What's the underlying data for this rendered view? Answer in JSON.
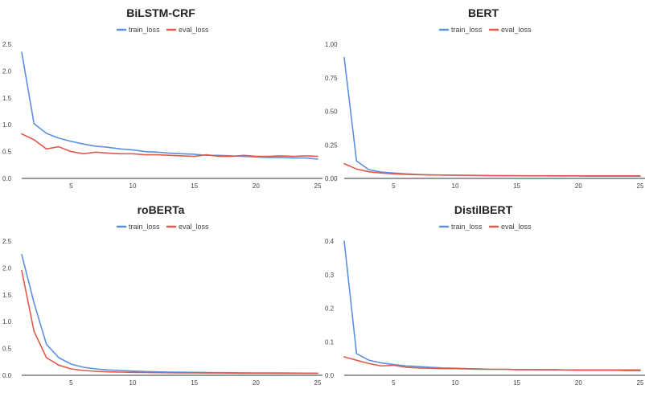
{
  "chart_data": [
    {
      "type": "line",
      "title": "BiLSTM-CRF",
      "xlabel": "",
      "ylabel": "",
      "xlim": [
        1,
        25
      ],
      "ylim": [
        0,
        2.5
      ],
      "xticks": [
        5,
        10,
        15,
        20,
        25
      ],
      "yticks": [
        0.0,
        0.5,
        1.0,
        1.5,
        2.0,
        2.5
      ],
      "ytick_labels": [
        "0.0",
        "0.5",
        "1.0",
        "1.5",
        "2.0",
        "2.5"
      ],
      "grid": false,
      "legend": "top-center",
      "x": [
        1,
        2,
        3,
        4,
        5,
        6,
        7,
        8,
        9,
        10,
        11,
        12,
        13,
        14,
        15,
        16,
        17,
        18,
        19,
        20,
        21,
        22,
        23,
        24,
        25
      ],
      "series": [
        {
          "name": "train_loss",
          "color": "#5b8fe0",
          "values": [
            2.35,
            1.02,
            0.84,
            0.75,
            0.69,
            0.64,
            0.6,
            0.58,
            0.55,
            0.53,
            0.5,
            0.49,
            0.47,
            0.46,
            0.45,
            0.43,
            0.43,
            0.42,
            0.41,
            0.4,
            0.39,
            0.39,
            0.38,
            0.38,
            0.36
          ]
        },
        {
          "name": "eval_loss",
          "color": "#e05b4b",
          "values": [
            0.83,
            0.72,
            0.55,
            0.59,
            0.5,
            0.46,
            0.49,
            0.47,
            0.46,
            0.46,
            0.44,
            0.44,
            0.43,
            0.42,
            0.41,
            0.44,
            0.41,
            0.41,
            0.43,
            0.41,
            0.41,
            0.42,
            0.41,
            0.42,
            0.41
          ]
        }
      ]
    },
    {
      "type": "line",
      "title": "BERT",
      "xlabel": "",
      "ylabel": "",
      "xlim": [
        1,
        25
      ],
      "ylim": [
        0,
        1.0
      ],
      "xticks": [
        5,
        10,
        15,
        20,
        25
      ],
      "yticks": [
        0.0,
        0.25,
        0.5,
        0.75,
        1.0
      ],
      "ytick_labels": [
        "0.00",
        "0.25",
        "0.50",
        "0.75",
        "1.00"
      ],
      "grid": false,
      "legend": "top-center",
      "x": [
        1,
        2,
        3,
        4,
        5,
        6,
        7,
        8,
        9,
        10,
        11,
        12,
        13,
        14,
        15,
        16,
        17,
        18,
        19,
        20,
        21,
        22,
        23,
        24,
        25
      ],
      "series": [
        {
          "name": "train_loss",
          "color": "#5b8fe0",
          "values": [
            0.9,
            0.13,
            0.065,
            0.048,
            0.04,
            0.034,
            0.03,
            0.027,
            0.025,
            0.024,
            0.023,
            0.022,
            0.021,
            0.02,
            0.02,
            0.019,
            0.019,
            0.018,
            0.018,
            0.018,
            0.017,
            0.017,
            0.017,
            0.017,
            0.017
          ]
        },
        {
          "name": "eval_loss",
          "color": "#e05b4b",
          "values": [
            0.11,
            0.07,
            0.05,
            0.04,
            0.034,
            0.03,
            0.028,
            0.026,
            0.025,
            0.024,
            0.023,
            0.022,
            0.021,
            0.021,
            0.02,
            0.02,
            0.02,
            0.02,
            0.019,
            0.019,
            0.019,
            0.019,
            0.019,
            0.019,
            0.019
          ]
        }
      ]
    },
    {
      "type": "line",
      "title": "roBERTa",
      "xlabel": "",
      "ylabel": "",
      "xlim": [
        1,
        25
      ],
      "ylim": [
        0,
        2.5
      ],
      "xticks": [
        5,
        10,
        15,
        20,
        25
      ],
      "yticks": [
        0.0,
        0.5,
        1.0,
        1.5,
        2.0,
        2.5
      ],
      "ytick_labels": [
        "0.0",
        "0.5",
        "1.0",
        "1.5",
        "2.0",
        "2.5"
      ],
      "grid": false,
      "legend": "top-center",
      "x": [
        1,
        2,
        3,
        4,
        5,
        6,
        7,
        8,
        9,
        10,
        11,
        12,
        13,
        14,
        15,
        16,
        17,
        18,
        19,
        20,
        21,
        22,
        23,
        24,
        25
      ],
      "series": [
        {
          "name": "train_loss",
          "color": "#5b8fe0",
          "values": [
            2.25,
            1.35,
            0.58,
            0.33,
            0.21,
            0.15,
            0.12,
            0.1,
            0.09,
            0.08,
            0.07,
            0.065,
            0.06,
            0.057,
            0.055,
            0.052,
            0.05,
            0.048,
            0.046,
            0.045,
            0.044,
            0.043,
            0.042,
            0.041,
            0.04
          ]
        },
        {
          "name": "eval_loss",
          "color": "#e05b4b",
          "values": [
            1.95,
            0.82,
            0.33,
            0.19,
            0.12,
            0.09,
            0.075,
            0.065,
            0.06,
            0.055,
            0.052,
            0.05,
            0.048,
            0.046,
            0.045,
            0.044,
            0.043,
            0.042,
            0.041,
            0.04,
            0.04,
            0.039,
            0.039,
            0.038,
            0.038
          ]
        }
      ]
    },
    {
      "type": "line",
      "title": "DistilBERT",
      "xlabel": "",
      "ylabel": "",
      "xlim": [
        1,
        25
      ],
      "ylim": [
        0,
        0.4
      ],
      "xticks": [
        5,
        10,
        15,
        20,
        25
      ],
      "yticks": [
        0.0,
        0.1,
        0.2,
        0.3,
        0.4
      ],
      "ytick_labels": [
        "0.0",
        "0.1",
        "0.2",
        "0.3",
        "0.4"
      ],
      "grid": false,
      "legend": "top-center",
      "x": [
        1,
        2,
        3,
        4,
        5,
        6,
        7,
        8,
        9,
        10,
        11,
        12,
        13,
        14,
        15,
        16,
        17,
        18,
        19,
        20,
        21,
        22,
        23,
        24,
        25
      ],
      "series": [
        {
          "name": "train_loss",
          "color": "#5b8fe0",
          "values": [
            0.4,
            0.065,
            0.045,
            0.037,
            0.032,
            0.028,
            0.026,
            0.024,
            0.022,
            0.021,
            0.02,
            0.019,
            0.018,
            0.018,
            0.017,
            0.017,
            0.016,
            0.016,
            0.016,
            0.015,
            0.015,
            0.015,
            0.015,
            0.014,
            0.014
          ]
        },
        {
          "name": "eval_loss",
          "color": "#e05b4b",
          "values": [
            0.055,
            0.045,
            0.035,
            0.028,
            0.03,
            0.024,
            0.022,
            0.021,
            0.02,
            0.02,
            0.019,
            0.018,
            0.018,
            0.018,
            0.017,
            0.017,
            0.017,
            0.017,
            0.016,
            0.016,
            0.016,
            0.016,
            0.016,
            0.016,
            0.016
          ]
        }
      ]
    }
  ]
}
